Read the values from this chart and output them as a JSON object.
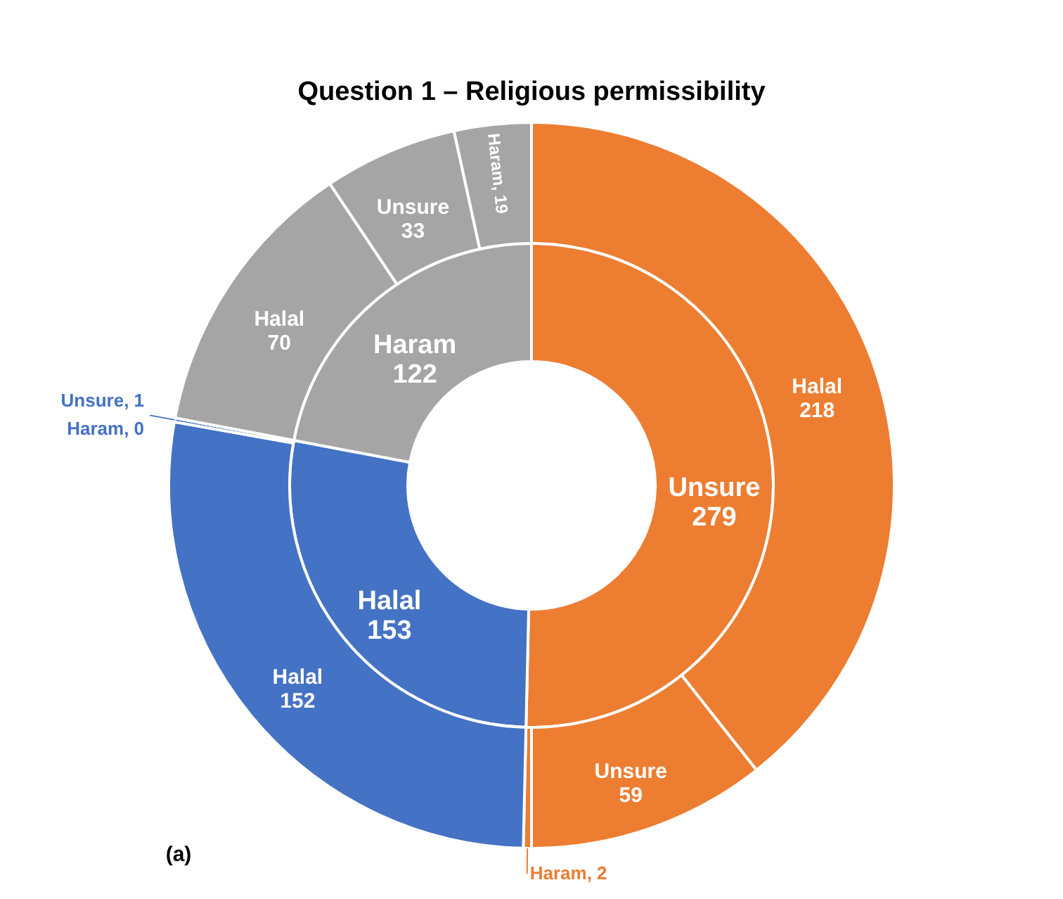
{
  "chart_data": {
    "type": "donut",
    "title": "Question 1 – Religious permissibility",
    "annotations": [
      "(a)"
    ],
    "series": [
      {
        "values": [
          279,
          153,
          122
        ],
        "colors": [
          "#ed7d31",
          "#4472c4",
          "#a5a5a5"
        ],
        "value_labels": [
          "Unsure 279",
          "Halal 153",
          "Haram 122"
        ]
      },
      {
        "values": [
          218,
          59,
          2,
          152,
          1,
          0,
          70,
          33,
          19
        ],
        "colors": [
          "#ed7d31",
          "#ed7d31",
          "#ed7d31",
          "#4472c4",
          "#4472c4",
          "#4472c4",
          "#a5a5a5",
          "#a5a5a5",
          "#a5a5a5"
        ],
        "value_labels": [
          "Halal 218",
          "Unsure 59",
          "Haram, 2",
          "Halal 152",
          "Unsure, 1",
          "Haram, 0",
          "Halal 70",
          "Unsure 33",
          "Haram, 19"
        ]
      }
    ]
  }
}
